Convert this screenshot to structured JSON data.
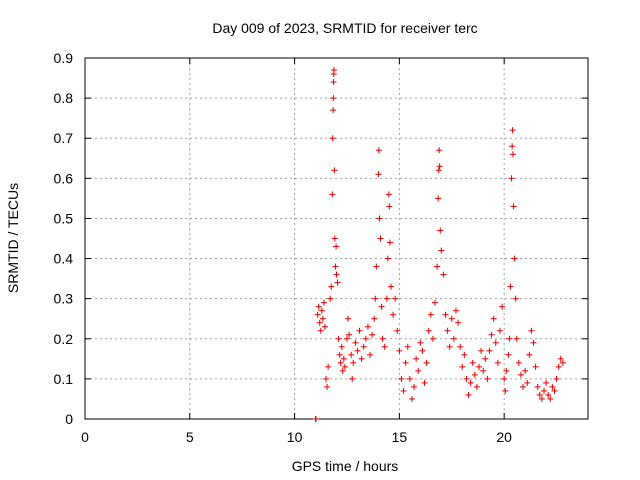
{
  "chart_data": {
    "type": "scatter",
    "title": "Day 009 of 2023, SRMTID for receiver terc",
    "xlabel": "GPS time / hours",
    "ylabel": "SRMTID / TECUs",
    "xlim": [
      0,
      24
    ],
    "ylim": [
      0,
      0.9
    ],
    "xticks": [
      0,
      5,
      10,
      15,
      20
    ],
    "yticks": [
      0,
      0.1,
      0.2,
      0.3,
      0.4,
      0.5,
      0.6,
      0.7,
      0.8,
      0.9
    ],
    "xtick_labels": [
      "0",
      "5",
      "10",
      "15",
      "20"
    ],
    "ytick_labels": [
      "0",
      "0.1",
      "0.2",
      "0.3",
      "0.4",
      "0.5",
      "0.6",
      "0.7",
      "0.8",
      "0.9"
    ],
    "grid": true,
    "marker": "+",
    "color": "#e00000",
    "series": [
      {
        "name": "SRMTID",
        "points": [
          [
            11.0,
            0.0
          ],
          [
            11.02,
            0.0
          ],
          [
            11.1,
            0.26
          ],
          [
            11.15,
            0.28
          ],
          [
            11.2,
            0.24
          ],
          [
            11.25,
            0.22
          ],
          [
            11.3,
            0.27
          ],
          [
            11.35,
            0.25
          ],
          [
            11.4,
            0.29
          ],
          [
            11.45,
            0.23
          ],
          [
            11.5,
            0.1
          ],
          [
            11.55,
            0.08
          ],
          [
            11.6,
            0.13
          ],
          [
            11.7,
            0.3
          ],
          [
            11.75,
            0.33
          ],
          [
            11.8,
            0.56
          ],
          [
            11.82,
            0.7
          ],
          [
            11.84,
            0.77
          ],
          [
            11.85,
            0.8
          ],
          [
            11.86,
            0.84
          ],
          [
            11.87,
            0.86
          ],
          [
            11.88,
            0.87
          ],
          [
            11.9,
            0.62
          ],
          [
            11.92,
            0.45
          ],
          [
            11.95,
            0.38
          ],
          [
            11.98,
            0.43
          ],
          [
            12.0,
            0.36
          ],
          [
            12.05,
            0.34
          ],
          [
            12.1,
            0.2
          ],
          [
            12.15,
            0.16
          ],
          [
            12.2,
            0.14
          ],
          [
            12.25,
            0.18
          ],
          [
            12.3,
            0.12
          ],
          [
            12.35,
            0.15
          ],
          [
            12.4,
            0.13
          ],
          [
            12.5,
            0.2
          ],
          [
            12.55,
            0.25
          ],
          [
            12.6,
            0.21
          ],
          [
            12.7,
            0.16
          ],
          [
            12.75,
            0.1
          ],
          [
            12.8,
            0.14
          ],
          [
            12.9,
            0.19
          ],
          [
            13.0,
            0.17
          ],
          [
            13.1,
            0.22
          ],
          [
            13.2,
            0.15
          ],
          [
            13.3,
            0.18
          ],
          [
            13.4,
            0.2
          ],
          [
            13.5,
            0.23
          ],
          [
            13.6,
            0.16
          ],
          [
            13.7,
            0.21
          ],
          [
            13.8,
            0.25
          ],
          [
            13.85,
            0.3
          ],
          [
            13.9,
            0.38
          ],
          [
            14.0,
            0.61
          ],
          [
            14.02,
            0.67
          ],
          [
            14.05,
            0.5
          ],
          [
            14.1,
            0.45
          ],
          [
            14.15,
            0.28
          ],
          [
            14.2,
            0.2
          ],
          [
            14.3,
            0.18
          ],
          [
            14.4,
            0.3
          ],
          [
            14.45,
            0.4
          ],
          [
            14.5,
            0.56
          ],
          [
            14.52,
            0.53
          ],
          [
            14.55,
            0.44
          ],
          [
            14.6,
            0.33
          ],
          [
            14.7,
            0.26
          ],
          [
            14.8,
            0.3
          ],
          [
            14.9,
            0.22
          ],
          [
            15.0,
            0.17
          ],
          [
            15.1,
            0.1
          ],
          [
            15.2,
            0.07
          ],
          [
            15.3,
            0.14
          ],
          [
            15.4,
            0.18
          ],
          [
            15.5,
            0.1
          ],
          [
            15.6,
            0.05
          ],
          [
            15.7,
            0.08
          ],
          [
            15.8,
            0.15
          ],
          [
            15.9,
            0.12
          ],
          [
            16.0,
            0.19
          ],
          [
            16.1,
            0.17
          ],
          [
            16.2,
            0.09
          ],
          [
            16.3,
            0.14
          ],
          [
            16.4,
            0.22
          ],
          [
            16.5,
            0.26
          ],
          [
            16.6,
            0.2
          ],
          [
            16.7,
            0.29
          ],
          [
            16.8,
            0.38
          ],
          [
            16.85,
            0.55
          ],
          [
            16.88,
            0.62
          ],
          [
            16.9,
            0.67
          ],
          [
            16.92,
            0.63
          ],
          [
            16.95,
            0.47
          ],
          [
            17.0,
            0.42
          ],
          [
            17.1,
            0.36
          ],
          [
            17.2,
            0.26
          ],
          [
            17.3,
            0.22
          ],
          [
            17.4,
            0.18
          ],
          [
            17.5,
            0.25
          ],
          [
            17.6,
            0.2
          ],
          [
            17.7,
            0.27
          ],
          [
            17.8,
            0.24
          ],
          [
            17.9,
            0.18
          ],
          [
            18.0,
            0.13
          ],
          [
            18.1,
            0.16
          ],
          [
            18.2,
            0.1
          ],
          [
            18.3,
            0.06
          ],
          [
            18.4,
            0.09
          ],
          [
            18.5,
            0.14
          ],
          [
            18.6,
            0.11
          ],
          [
            18.7,
            0.08
          ],
          [
            18.8,
            0.13
          ],
          [
            18.9,
            0.17
          ],
          [
            19.0,
            0.12
          ],
          [
            19.1,
            0.15
          ],
          [
            19.2,
            0.1
          ],
          [
            19.3,
            0.17
          ],
          [
            19.4,
            0.21
          ],
          [
            19.5,
            0.25
          ],
          [
            19.6,
            0.19
          ],
          [
            19.7,
            0.14
          ],
          [
            19.8,
            0.22
          ],
          [
            19.9,
            0.28
          ],
          [
            20.0,
            0.1
          ],
          [
            20.05,
            0.07
          ],
          [
            20.1,
            0.12
          ],
          [
            20.2,
            0.16
          ],
          [
            20.25,
            0.2
          ],
          [
            20.3,
            0.33
          ],
          [
            20.35,
            0.6
          ],
          [
            20.38,
            0.68
          ],
          [
            20.4,
            0.72
          ],
          [
            20.42,
            0.66
          ],
          [
            20.45,
            0.53
          ],
          [
            20.5,
            0.4
          ],
          [
            20.55,
            0.3
          ],
          [
            20.6,
            0.2
          ],
          [
            20.7,
            0.14
          ],
          [
            20.8,
            0.11
          ],
          [
            20.9,
            0.08
          ],
          [
            21.0,
            0.12
          ],
          [
            21.1,
            0.09
          ],
          [
            21.2,
            0.16
          ],
          [
            21.3,
            0.22
          ],
          [
            21.4,
            0.19
          ],
          [
            21.5,
            0.13
          ],
          [
            21.6,
            0.08
          ],
          [
            21.7,
            0.06
          ],
          [
            21.8,
            0.05
          ],
          [
            21.9,
            0.07
          ],
          [
            22.0,
            0.09
          ],
          [
            22.1,
            0.06
          ],
          [
            22.2,
            0.05
          ],
          [
            22.3,
            0.08
          ],
          [
            22.4,
            0.07
          ],
          [
            22.5,
            0.1
          ],
          [
            22.6,
            0.13
          ],
          [
            22.7,
            0.15
          ],
          [
            22.8,
            0.14
          ]
        ]
      }
    ]
  }
}
